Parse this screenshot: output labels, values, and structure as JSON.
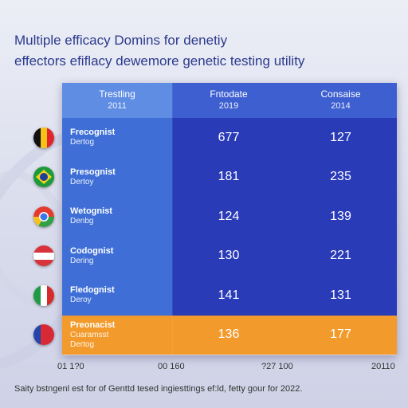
{
  "title_lines": [
    "Multiple efficacy Domins for denetiy",
    "effectors efiflacy dewemore genetic testing utility"
  ],
  "headers": [
    {
      "label": "Trestling",
      "year": "2011"
    },
    {
      "label": "Fntodate",
      "year": "2019"
    },
    {
      "label": "Consaise",
      "year": "2014"
    }
  ],
  "rows": [
    {
      "name": "Frecognist",
      "sub": "Dertog",
      "sub2": "",
      "v1": "677",
      "v2": "127",
      "flag": [
        "#111111",
        "#f6c21a",
        "#e0262b"
      ],
      "flag_dir": "row",
      "highlight": false
    },
    {
      "name": "Presognist",
      "sub": "Dertoy",
      "sub2": "",
      "v1": "181",
      "v2": "235",
      "flag": [
        "#1e9a3a",
        "#f5d21c",
        "#1e3f9a"
      ],
      "flag_dir": "brazil",
      "highlight": false
    },
    {
      "name": "Wetognist",
      "sub": "Denbg",
      "sub2": "",
      "v1": "124",
      "v2": "139",
      "flag": [
        "#e33b2e",
        "#f5c21a",
        "#2da246"
      ],
      "flag_dir": "chrome",
      "highlight": false
    },
    {
      "name": "Codognist",
      "sub": "Dering",
      "sub2": "",
      "v1": "130",
      "v2": "221",
      "flag": [
        "#d8323a",
        "#ffffff",
        "#d8323a"
      ],
      "flag_dir": "column",
      "highlight": false
    },
    {
      "name": "Fledognist",
      "sub": "Deroy",
      "sub2": "",
      "v1": "141",
      "v2": "131",
      "flag": [
        "#1f9a45",
        "#ffffff",
        "#d52b2b"
      ],
      "flag_dir": "row",
      "highlight": false
    },
    {
      "name": "Preonacist",
      "sub": "Cuaramsst",
      "sub2": "Dertog",
      "v1": "136",
      "v2": "177",
      "flag": [
        "#2346a8",
        "#d72a35",
        "#d72a35"
      ],
      "flag_dir": "row",
      "highlight": true
    }
  ],
  "axis_labels": [
    "01 1?0",
    "00 160",
    "?27 100",
    "20110"
  ],
  "footnote": "Saity bstngenl est for of Genttd tesed ingiesttings ef:ld, fetty gour for 2022.",
  "chart_data": {
    "type": "table",
    "columns": [
      "Trestling 2011",
      "Fntodate 2019",
      "Consaise 2014"
    ],
    "rows": [
      {
        "label": "Frecognist Dertog",
        "values": [
          677,
          127
        ]
      },
      {
        "label": "Presognist Dertoy",
        "values": [
          181,
          235
        ]
      },
      {
        "label": "Wetognist Denbg",
        "values": [
          124,
          139
        ]
      },
      {
        "label": "Codognist Dering",
        "values": [
          130,
          221
        ]
      },
      {
        "label": "Fledognist Deroy",
        "values": [
          141,
          131
        ]
      },
      {
        "label": "Preonacist Cuaramsst Dertog",
        "values": [
          136,
          177
        ]
      }
    ]
  }
}
